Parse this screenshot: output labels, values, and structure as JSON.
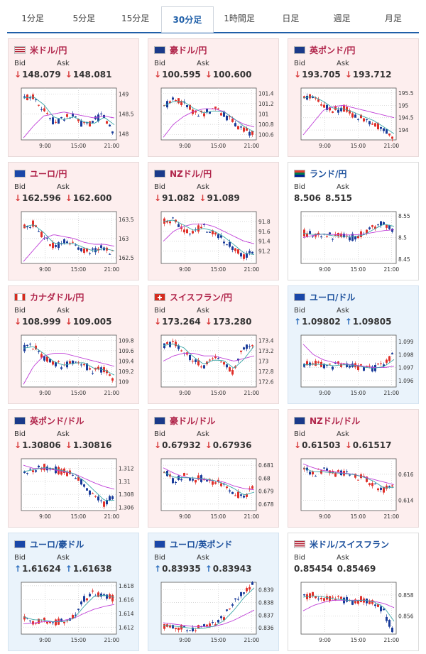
{
  "tabs": [
    {
      "label": "1分足"
    },
    {
      "label": "5分足"
    },
    {
      "label": "15分足"
    },
    {
      "label": "30分足",
      "active": true
    },
    {
      "label": "1時間足"
    },
    {
      "label": "日足"
    },
    {
      "label": "週足"
    },
    {
      "label": "月足"
    }
  ],
  "labels": {
    "bid": "Bid",
    "ask": "Ask"
  },
  "cards": [
    {
      "pair": "米ドル/円",
      "flag": "us-jp-flag-icon",
      "dir": "down",
      "bid": "148.079",
      "ask": "148.081",
      "chart_data": {
        "type": "candlestick",
        "xticks": [
          "9:00",
          "15:00",
          "21:00"
        ],
        "yticks": [
          "149",
          "148.5",
          "148"
        ],
        "ylim": [
          147.85,
          149.15
        ],
        "trend": [
          148.9,
          148.95,
          148.6,
          148.3,
          148.4,
          148.45,
          148.2,
          148.3,
          148.5,
          148.05
        ],
        "ma": [
          147.9,
          148.2,
          148.45,
          148.5,
          148.55,
          148.5,
          148.45,
          148.4,
          148.45,
          148.4
        ]
      }
    },
    {
      "pair": "豪ドル/円",
      "flag": "au-jp-flag-icon",
      "dir": "down",
      "bid": "100.595",
      "ask": "100.600",
      "chart_data": {
        "type": "candlestick",
        "xticks": [
          "9:00",
          "15:00",
          "21:00"
        ],
        "yticks": [
          "101.4",
          "101.2",
          "101",
          "100.8",
          "100.6"
        ],
        "ylim": [
          100.5,
          101.5
        ],
        "trend": [
          101.15,
          101.3,
          101.2,
          101.05,
          101.0,
          101.1,
          101.0,
          100.85,
          100.7,
          100.62
        ],
        "ma": [
          100.55,
          100.8,
          100.95,
          101.05,
          101.1,
          101.1,
          101.05,
          100.9,
          100.8,
          100.75
        ]
      }
    },
    {
      "pair": "英ポンド/円",
      "flag": "gb-jp-flag-icon",
      "dir": "down",
      "bid": "193.705",
      "ask": "193.712",
      "chart_data": {
        "type": "candlestick",
        "xticks": [
          "9:00",
          "15:00",
          "21:00"
        ],
        "yticks": [
          "195.5",
          "195",
          "194.5",
          "194"
        ],
        "ylim": [
          193.6,
          195.7
        ],
        "trend": [
          195.3,
          195.4,
          195.0,
          194.8,
          194.9,
          194.6,
          194.5,
          194.3,
          194.0,
          193.75
        ],
        "ma": [
          193.8,
          194.3,
          194.8,
          194.95,
          195.0,
          194.9,
          194.8,
          194.7,
          194.6,
          194.5
        ]
      }
    },
    {
      "pair": "ユーロ/円",
      "flag": "eu-jp-flag-icon",
      "dir": "down",
      "bid": "162.596",
      "ask": "162.600",
      "chart_data": {
        "type": "candlestick",
        "xticks": [
          "9:00",
          "15:00",
          "21:00"
        ],
        "yticks": [
          "163.5",
          "163",
          "162.5"
        ],
        "ylim": [
          162.35,
          163.7
        ],
        "trend": [
          163.3,
          163.4,
          163.0,
          162.8,
          162.9,
          162.85,
          162.7,
          162.65,
          162.8,
          162.6
        ],
        "ma": [
          162.4,
          162.7,
          163.0,
          163.1,
          163.05,
          163.0,
          162.9,
          162.85,
          162.85,
          162.8
        ]
      }
    },
    {
      "pair": "NZドル/円",
      "flag": "nz-jp-flag-icon",
      "dir": "down",
      "bid": "91.082",
      "ask": "91.089",
      "chart_data": {
        "type": "candlestick",
        "xticks": [
          "9:00",
          "15:00",
          "21:00"
        ],
        "yticks": [
          "91.8",
          "91.6",
          "91.4",
          "91.2"
        ],
        "ylim": [
          90.95,
          92.0
        ],
        "trend": [
          91.8,
          91.85,
          91.65,
          91.6,
          91.7,
          91.55,
          91.45,
          91.25,
          91.1,
          91.15
        ],
        "ma": [
          91.4,
          91.6,
          91.7,
          91.75,
          91.75,
          91.7,
          91.6,
          91.5,
          91.4,
          91.35
        ]
      }
    },
    {
      "pair": "ランド/円",
      "flag": "za-jp-flag-icon",
      "dir": "flat",
      "bid": "8.506",
      "ask": "8.515",
      "chart_data": {
        "type": "candlestick",
        "xticks": [
          "9:00",
          "15:00",
          "21:00"
        ],
        "yticks": [
          "8.55",
          "8.5",
          "8.45"
        ],
        "ylim": [
          8.44,
          8.56
        ],
        "trend": [
          8.51,
          8.505,
          8.51,
          8.5,
          8.505,
          8.5,
          8.51,
          8.525,
          8.535,
          8.52
        ],
        "ma": [
          8.5,
          8.505,
          8.508,
          8.507,
          8.506,
          8.506,
          8.508,
          8.512,
          8.516,
          8.518
        ]
      }
    },
    {
      "pair": "カナダドル/円",
      "flag": "ca-jp-flag-icon",
      "dir": "down",
      "bid": "108.999",
      "ask": "109.005",
      "chart_data": {
        "type": "candlestick",
        "xticks": [
          "9:00",
          "15:00",
          "21:00"
        ],
        "yticks": [
          "109.8",
          "109.6",
          "109.4",
          "109.2",
          "109"
        ],
        "ylim": [
          108.9,
          109.9
        ],
        "trend": [
          109.65,
          109.7,
          109.45,
          109.35,
          109.3,
          109.4,
          109.35,
          109.2,
          109.25,
          109.05
        ],
        "ma": [
          108.95,
          109.3,
          109.5,
          109.55,
          109.55,
          109.5,
          109.45,
          109.4,
          109.35,
          109.3
        ]
      }
    },
    {
      "pair": "スイスフラン/円",
      "flag": "ch-jp-flag-icon",
      "dir": "down",
      "bid": "173.264",
      "ask": "173.280",
      "chart_data": {
        "type": "candlestick",
        "xticks": [
          "9:00",
          "15:00",
          "21:00"
        ],
        "yticks": [
          "173.4",
          "173.2",
          "173",
          "172.8",
          "172.6"
        ],
        "ylim": [
          172.5,
          173.5
        ],
        "trend": [
          173.3,
          173.35,
          173.2,
          173.0,
          172.9,
          173.1,
          172.95,
          172.8,
          173.2,
          173.35
        ],
        "ma": [
          173.0,
          173.1,
          173.15,
          173.15,
          173.1,
          173.1,
          173.05,
          173.0,
          173.05,
          173.1
        ]
      }
    },
    {
      "pair": "ユーロ/ドル",
      "flag": "eu-us-flag-icon",
      "dir": "up",
      "bid": "1.09802",
      "ask": "1.09805",
      "chart_data": {
        "type": "candlestick",
        "xticks": [
          "9:00",
          "15:00",
          "21:00"
        ],
        "yticks": [
          "1.099",
          "1.098",
          "1.097",
          "1.096"
        ],
        "ylim": [
          1.0955,
          1.0995
        ],
        "trend": [
          1.0972,
          1.0973,
          1.0972,
          1.0971,
          1.0973,
          1.0971,
          1.097,
          1.0969,
          1.0972,
          1.0979
        ],
        "ma": [
          1.0988,
          1.098,
          1.0976,
          1.0974,
          1.0973,
          1.0972,
          1.0971,
          1.097,
          1.097,
          1.0971
        ]
      }
    },
    {
      "pair": "英ポンド/ドル",
      "flag": "gb-us-flag-icon",
      "dir": "down",
      "bid": "1.30806",
      "ask": "1.30816",
      "chart_data": {
        "type": "candlestick",
        "xticks": [
          "9:00",
          "15:00",
          "21:00"
        ],
        "yticks": [
          "1.312",
          "1.31",
          "1.308",
          "1.306"
        ],
        "ylim": [
          1.3055,
          1.3135
        ],
        "trend": [
          1.3115,
          1.312,
          1.3122,
          1.3118,
          1.3115,
          1.311,
          1.3095,
          1.308,
          1.3065,
          1.3075
        ],
        "ma": [
          1.3125,
          1.312,
          1.312,
          1.3118,
          1.3115,
          1.3112,
          1.3105,
          1.3098,
          1.3092,
          1.3088
        ]
      }
    },
    {
      "pair": "豪ドル/ドル",
      "flag": "au-us-flag-icon",
      "dir": "down",
      "bid": "0.67932",
      "ask": "0.67936",
      "chart_data": {
        "type": "candlestick",
        "xticks": [
          "9:00",
          "15:00",
          "21:00"
        ],
        "yticks": [
          "0.681",
          "0.68",
          "0.679",
          "0.678"
        ],
        "ylim": [
          0.6775,
          0.6815
        ],
        "trend": [
          0.6805,
          0.6798,
          0.6802,
          0.6799,
          0.68,
          0.6797,
          0.6795,
          0.679,
          0.6785,
          0.6792
        ],
        "ma": [
          0.6808,
          0.6804,
          0.6801,
          0.68,
          0.6799,
          0.6798,
          0.6797,
          0.6794,
          0.6792,
          0.6791
        ]
      }
    },
    {
      "pair": "NZドル/ドル",
      "flag": "nz-us-flag-icon",
      "dir": "down",
      "bid": "0.61503",
      "ask": "0.61517",
      "chart_data": {
        "type": "candlestick",
        "xticks": [
          "9:00",
          "15:00",
          "21:00"
        ],
        "yticks": [
          "0.616",
          "0.614"
        ],
        "ylim": [
          0.6132,
          0.6172
        ],
        "trend": [
          0.6165,
          0.616,
          0.6163,
          0.616,
          0.6161,
          0.6159,
          0.6157,
          0.6153,
          0.6147,
          0.6152
        ],
        "ma": [
          0.6168,
          0.6165,
          0.6163,
          0.6162,
          0.6161,
          0.616,
          0.6158,
          0.6156,
          0.6154,
          0.6152
        ]
      }
    },
    {
      "pair": "ユーロ/豪ドル",
      "flag": "eu-au-flag-icon",
      "dir": "up",
      "bid": "1.61624",
      "ask": "1.61638",
      "chart_data": {
        "type": "candlestick",
        "xticks": [
          "9:00",
          "15:00",
          "21:00"
        ],
        "yticks": [
          "1.618",
          "1.616",
          "1.614",
          "1.612"
        ],
        "ylim": [
          1.611,
          1.6185
        ],
        "trend": [
          1.6135,
          1.6128,
          1.6132,
          1.6125,
          1.613,
          1.6135,
          1.616,
          1.6168,
          1.6165,
          1.6162
        ],
        "ma": [
          1.6125,
          1.6126,
          1.6128,
          1.6128,
          1.613,
          1.6133,
          1.614,
          1.6146,
          1.615,
          1.6153
        ]
      }
    },
    {
      "pair": "ユーロ/英ポンド",
      "flag": "eu-gb-flag-icon",
      "dir": "up",
      "bid": "0.83935",
      "ask": "0.83943",
      "chart_data": {
        "type": "candlestick",
        "xticks": [
          "9:00",
          "15:00",
          "21:00"
        ],
        "yticks": [
          "0.839",
          "0.838",
          "0.837",
          "0.836"
        ],
        "ylim": [
          0.8355,
          0.8396
        ],
        "trend": [
          0.8362,
          0.8361,
          0.836,
          0.8359,
          0.836,
          0.8362,
          0.8368,
          0.8378,
          0.8388,
          0.8394
        ],
        "ma": [
          0.8364,
          0.8363,
          0.8362,
          0.8361,
          0.8361,
          0.8361,
          0.8363,
          0.8366,
          0.837,
          0.8374
        ]
      }
    },
    {
      "pair": "米ドル/スイスフラン",
      "flag": "us-ch-flag-icon",
      "dir": "flat",
      "bid": "0.85454",
      "ask": "0.85469",
      "chart_data": {
        "type": "candlestick",
        "xticks": [
          "9:00",
          "15:00",
          "21:00"
        ],
        "yticks": [
          "0.858",
          "0.856"
        ],
        "ylim": [
          0.8543,
          0.8592
        ],
        "trend": [
          0.8578,
          0.858,
          0.8577,
          0.8576,
          0.8575,
          0.8574,
          0.8576,
          0.8572,
          0.8566,
          0.8548
        ],
        "ma": [
          0.8565,
          0.857,
          0.8573,
          0.8575,
          0.8575,
          0.8575,
          0.8575,
          0.8574,
          0.8572,
          0.8568
        ]
      }
    }
  ]
}
